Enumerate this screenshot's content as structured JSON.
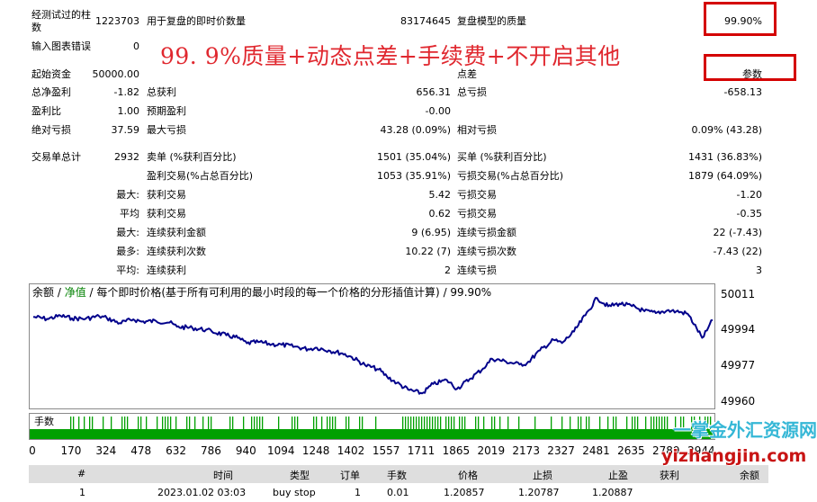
{
  "summary": {
    "bars_label": "经测试过的柱数",
    "bars_value": "1223703",
    "ticks_label": "用于复盘的即时价数量",
    "ticks_value": "83174645",
    "quality_label": "复盘模型的质量",
    "quality_value": "99.90%",
    "chart_errors_label": "输入图表错误",
    "chart_errors_value": "0",
    "initial_deposit_label": "起始资金",
    "initial_deposit_value": "50000.00",
    "spread_label": "点差",
    "spread_value": "参数",
    "net_profit_label": "总净盈利",
    "net_profit_value": "-1.82",
    "gross_profit_label": "总获利",
    "gross_profit_value": "656.31",
    "gross_loss_label": "总亏损",
    "gross_loss_value": "-658.13",
    "profit_factor_label": "盈利比",
    "profit_factor_value": "1.00",
    "expected_payoff_label": "预期盈利",
    "expected_payoff_value": "-0.00",
    "abs_drawdown_label": "绝对亏损",
    "abs_drawdown_value": "37.59",
    "max_drawdown_label": "最大亏损",
    "max_drawdown_value": "43.28 (0.09%)",
    "rel_drawdown_label": "相对亏损",
    "rel_drawdown_value": "0.09% (43.28)",
    "total_trades_label": "交易单总计",
    "total_trades_value": "2932",
    "short_label": "卖单 (%获利百分比)",
    "short_value": "1501 (35.04%)",
    "long_label": "买单 (%获利百分比)",
    "long_value": "1431 (36.83%)",
    "profit_trades_label": "盈利交易(%占总百分比)",
    "profit_trades_value": "1053 (35.91%)",
    "loss_trades_label": "亏损交易(%占总百分比)",
    "loss_trades_value": "1879 (64.09%)",
    "largest_label": "最大:",
    "largest_profit_label": "获利交易",
    "largest_profit_value": "5.42",
    "largest_loss_label": "亏损交易",
    "largest_loss_value": "-1.20",
    "average_label": "平均",
    "average_profit_label": "获利交易",
    "average_profit_value": "0.62",
    "average_loss_label": "亏损交易",
    "average_loss_value": "-0.35",
    "max_label": "最大:",
    "max_consec_wins_label": "连续获利金额",
    "max_consec_wins_value": "9 (6.95)",
    "max_consec_losses_label": "连续亏损金额",
    "max_consec_losses_value": "22 (-7.43)",
    "most_label": "最多:",
    "max_consec_profit_label": "连续获利次数",
    "max_consec_profit_value": "10.22 (7)",
    "max_consec_loss_label": "连续亏损次数",
    "max_consec_loss_value": "-7.43 (22)",
    "avg_label": "平均:",
    "avg_consec_wins_label": "连续获利",
    "avg_consec_wins_value": "2",
    "avg_consec_losses_label": "连续亏损",
    "avg_consec_losses_value": "3"
  },
  "banner_text": "99. 9%质量+动态点差+手续费+不开启其他",
  "chart_legend": {
    "balance": "余额",
    "sep1": " / ",
    "equity": "净值",
    "sep2": " / ",
    "description": "每个即时价格(基于所有可利用的最小时段的每一个价格的分形插值计算)",
    "sep3": " / ",
    "quality": "99.90%"
  },
  "trades_label": "手数",
  "colors": {
    "line": "#00008b",
    "volume": "#00a000",
    "highlight_box": "#d40000",
    "header_bg": "#dedede"
  },
  "chart_data": {
    "type": "line",
    "ylim": [
      49956,
      50016
    ],
    "yticks": [
      "50011",
      "49994",
      "49977",
      "49960"
    ],
    "xticks": [
      "0",
      "170",
      "324",
      "478",
      "632",
      "786",
      "940",
      "1094",
      "1248",
      "1402",
      "1557",
      "1711",
      "1865",
      "2019",
      "2173",
      "2327",
      "2481",
      "2635",
      "2789",
      "2944"
    ],
    "xlim": [
      0,
      2990
    ],
    "series": [
      {
        "x": [
          0,
          60,
          120,
          170,
          230,
          290,
          324,
          380,
          440,
          478,
          540,
          600,
          632,
          700,
          760,
          786,
          850,
          900,
          940,
          990,
          1050,
          1094,
          1150,
          1210,
          1248,
          1300,
          1360,
          1402,
          1460,
          1520,
          1557,
          1600,
          1650,
          1711,
          1760,
          1820,
          1865,
          1920,
          1980,
          2019,
          2080,
          2140,
          2173,
          2230,
          2290,
          2327,
          2380,
          2430,
          2481,
          2530,
          2580,
          2635,
          2690,
          2740,
          2789,
          2830,
          2880,
          2920,
          2944,
          2965,
          2990
        ],
        "values": [
          50000.5,
          49999.5,
          50001,
          49999.8,
          49999.6,
          50000.8,
          49999.9,
          49997.5,
          49999.3,
          49998.2,
          49998.5,
          49997.8,
          49995.8,
          49995.2,
          49994.3,
          49993.5,
          49991.7,
          49990.5,
          49987.9,
          49988.5,
          49987.4,
          49987.2,
          49986.3,
          49985.1,
          49985.8,
          49984.5,
          49983.1,
          49981.3,
          49977.5,
          49975.4,
          49972.0,
          49969.0,
          49965.8,
          49964.0,
          49968.5,
          49970.4,
          49966.2,
          49970.8,
          49975.9,
          49980.5,
          49979.2,
          49977.8,
          49978.4,
          49984.5,
          49989.5,
          49988.0,
          49993.5,
          50001.2,
          50009.5,
          50005.5,
          50006.8,
          50005.6,
          50003.2,
          50002.3,
          50003.5,
          50003.1,
          50002.0,
          49995.0,
          49990.5,
          49994.0,
          49999.0
        ]
      }
    ]
  },
  "trades_header": {
    "num": "#",
    "time": "时间",
    "type": "类型",
    "order": "订单",
    "size": "手数",
    "price": "价格",
    "sl": "止损",
    "tp": "止盈",
    "profit": "获利",
    "balance": "余额"
  },
  "trades_rows": [
    {
      "num": "1",
      "time": "2023.01.02 03:03",
      "type": "buy stop",
      "order": "1",
      "size": "0.01",
      "price": "1.20857",
      "sl": "1.20787",
      "tp": "1.20887",
      "profit": "",
      "balance": ""
    }
  ],
  "watermark": {
    "line1": "一掌金外汇资源网",
    "line2": "yizhangjin.com"
  }
}
